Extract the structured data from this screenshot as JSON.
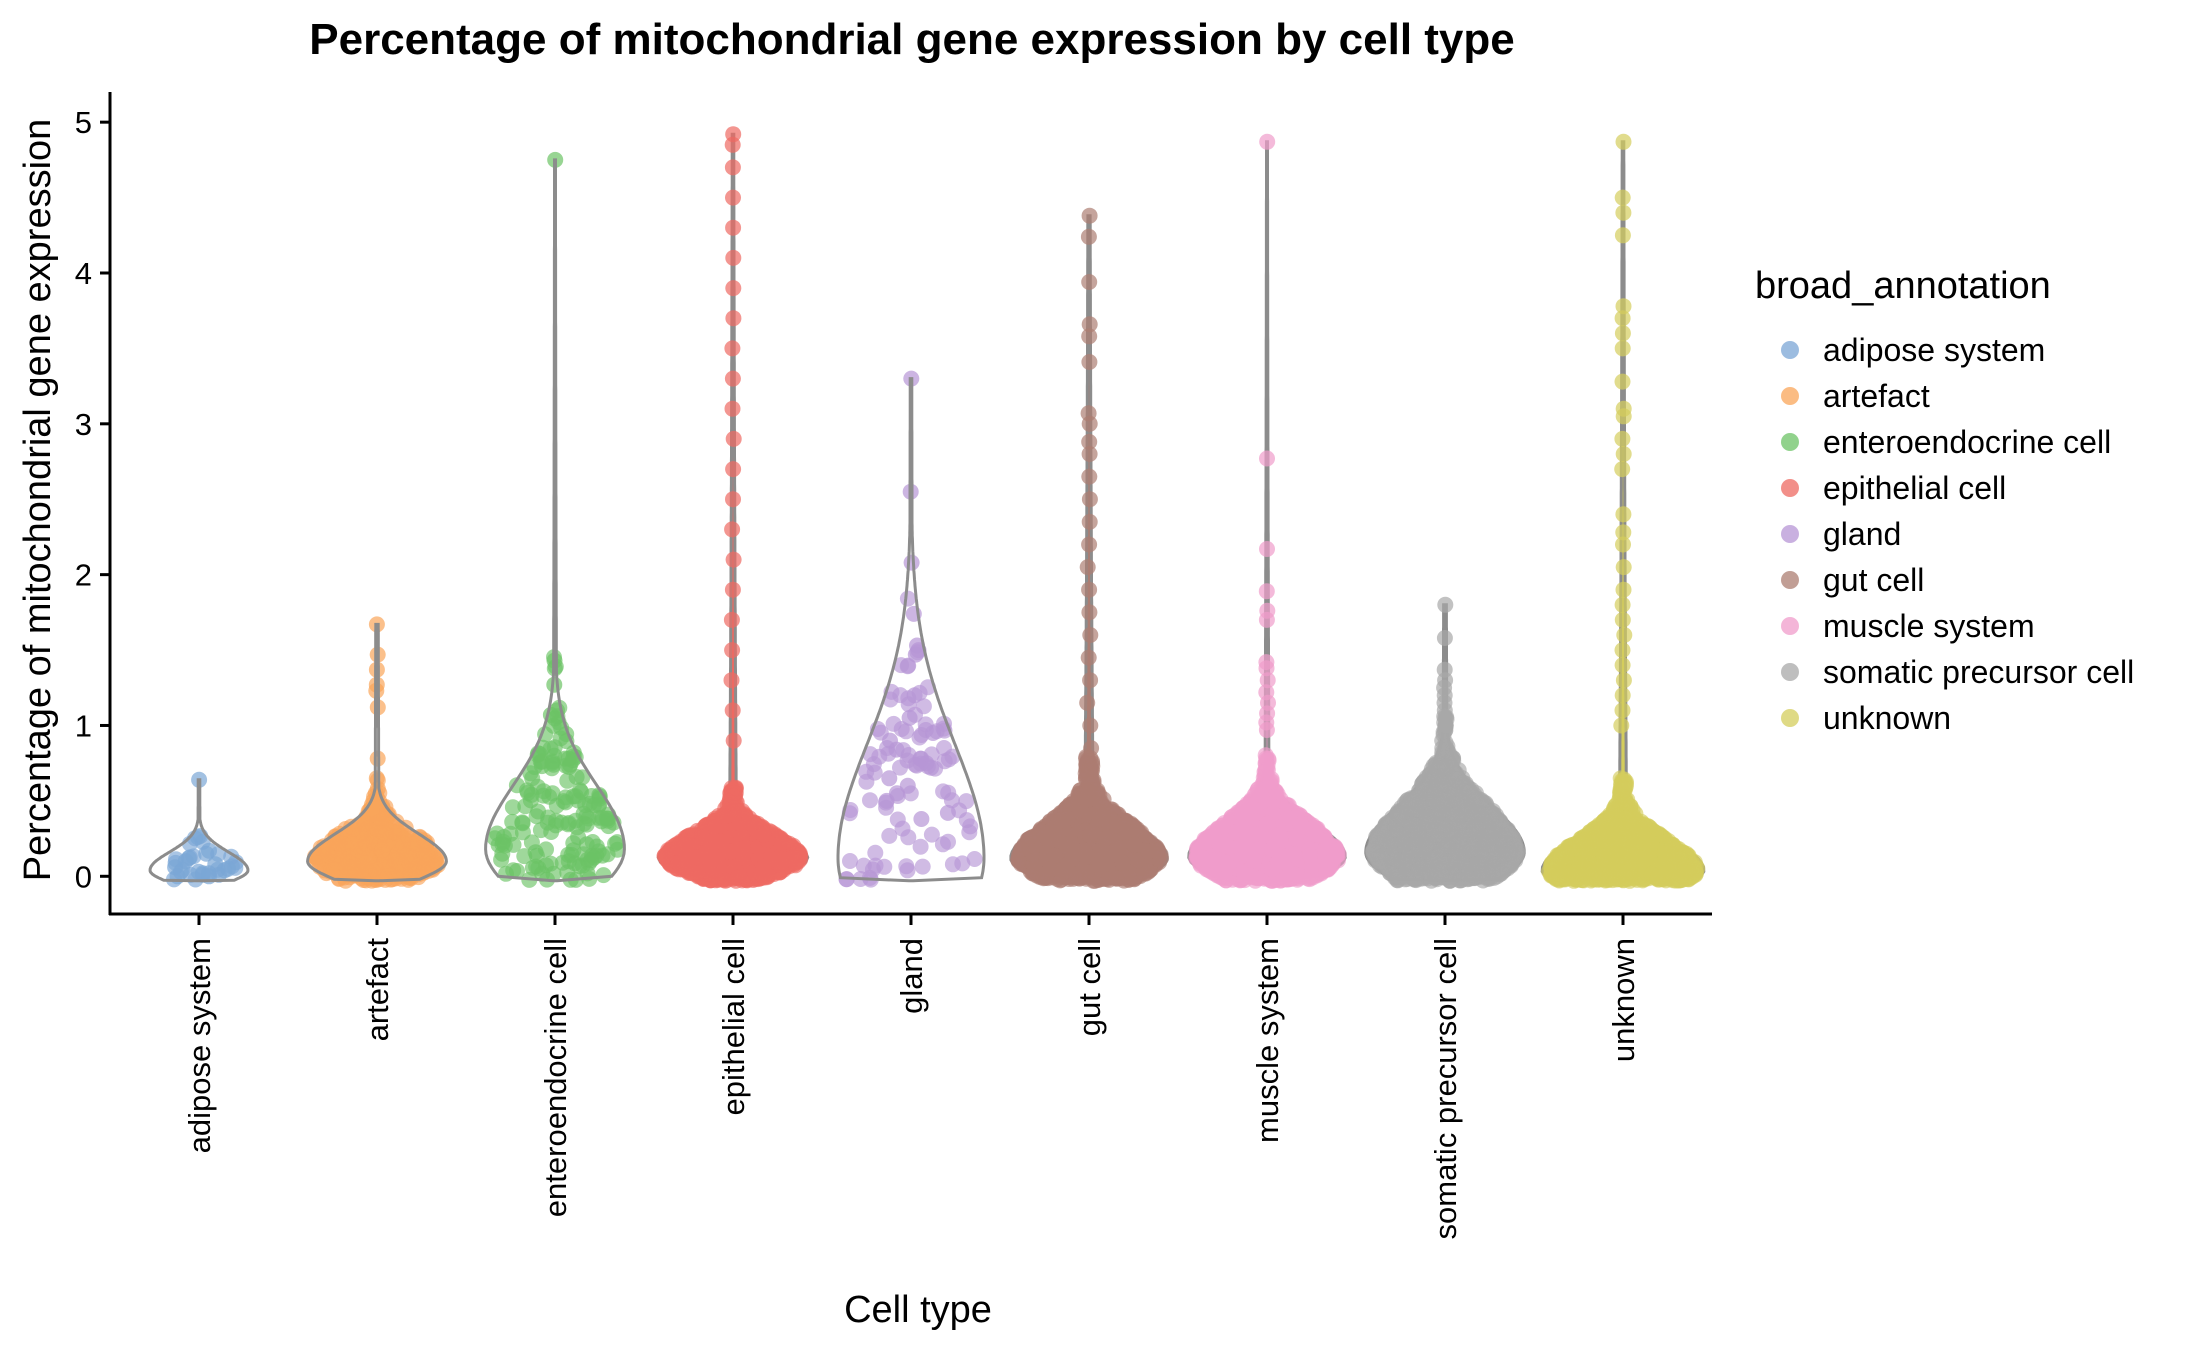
{
  "chart_data": {
    "type": "violin",
    "title": "Percentage of mitochondrial gene expression by cell type",
    "xlabel": "Cell type",
    "ylabel": "Percentage of mitochondrial gene expression",
    "ylim": [
      -0.25,
      5.2
    ],
    "yticks": [
      "0",
      "1",
      "2",
      "3",
      "4",
      "5"
    ],
    "legend": {
      "title": "broad_annotation",
      "position": "right"
    },
    "grid": false,
    "categories": [
      "adipose system",
      "artefact",
      "enteroendocrine cell",
      "epithelial cell",
      "gland",
      "gut cell",
      "muscle system",
      "somatic precursor cell",
      "unknown"
    ],
    "colors": [
      "#7ba6d6",
      "#f9a55a",
      "#6cc365",
      "#ee6a62",
      "#b796d6",
      "#ac7d72",
      "#f09ccb",
      "#a8a8a8",
      "#d4cd5c"
    ],
    "series": [
      {
        "name": "adipose system",
        "max": 0.64,
        "n": 18,
        "points": [
          0.64,
          0.26,
          0.17,
          0.15,
          0.12,
          0.08,
          0.05,
          0.03,
          0.03,
          0.02,
          0.02,
          0.01,
          0.01,
          0.0,
          0.0,
          0.04,
          0.06,
          0.1
        ]
      },
      {
        "name": "artefact",
        "max": 1.67,
        "n": 400,
        "points": [
          1.67,
          1.47,
          1.37,
          1.27,
          1.23,
          1.12,
          0.78,
          0.65,
          0.58,
          0.55,
          0.5,
          0.45
        ]
      },
      {
        "name": "enteroendocrine cell",
        "max": 4.75,
        "n": 160,
        "points": [
          4.75,
          1.43,
          1.27,
          1.1,
          1.07,
          0.78,
          0.76,
          0.74
        ]
      },
      {
        "name": "epithelial cell",
        "max": 4.92,
        "n": 3000,
        "points": [
          4.92,
          4.85,
          4.7,
          4.5,
          4.3,
          4.1,
          3.9,
          3.7,
          3.5,
          3.3,
          3.1,
          2.9,
          2.7,
          2.5,
          2.3,
          2.1,
          1.9,
          1.7,
          1.5,
          1.3,
          1.1,
          0.9
        ]
      },
      {
        "name": "gland",
        "max": 3.3,
        "n": 90,
        "points": [
          3.3,
          2.55,
          2.08,
          1.74,
          1.53,
          1.5,
          1.47,
          1.2,
          1.05,
          0.95,
          0.9,
          0.84,
          0.78,
          0.75,
          0.72,
          0.65,
          0.6,
          0.55,
          0.5,
          0.42,
          0.38
        ]
      },
      {
        "name": "gut cell",
        "max": 4.38,
        "n": 2500,
        "points": [
          4.38,
          4.24,
          3.94,
          3.66,
          3.58,
          3.41,
          3.07,
          3.0,
          2.88,
          2.8,
          2.65,
          2.5,
          2.35,
          2.2,
          2.05,
          1.9,
          1.75,
          1.6,
          1.45,
          1.3,
          1.15,
          1.0,
          0.85
        ]
      },
      {
        "name": "muscle system",
        "max": 4.87,
        "n": 1500,
        "points": [
          4.87,
          2.77,
          2.17,
          1.89,
          1.76,
          1.7,
          1.42,
          1.38,
          1.3,
          1.22,
          1.15,
          1.08,
          1.02,
          0.97
        ]
      },
      {
        "name": "somatic precursor cell",
        "max": 1.8,
        "n": 2000,
        "points": [
          1.8,
          1.58,
          1.37,
          1.3,
          1.25,
          1.2,
          1.15,
          1.1,
          1.05,
          1.0
        ]
      },
      {
        "name": "unknown",
        "max": 4.87,
        "n": 2500,
        "points": [
          4.87,
          4.5,
          4.4,
          4.25,
          3.78,
          3.7,
          3.6,
          3.5,
          3.28,
          3.1,
          3.05,
          2.9,
          2.8,
          2.7,
          2.4,
          2.28,
          2.2,
          2.05,
          1.9,
          1.8,
          1.7,
          1.6,
          1.5,
          1.4,
          1.3,
          1.2,
          1.1,
          1.0
        ]
      }
    ]
  }
}
